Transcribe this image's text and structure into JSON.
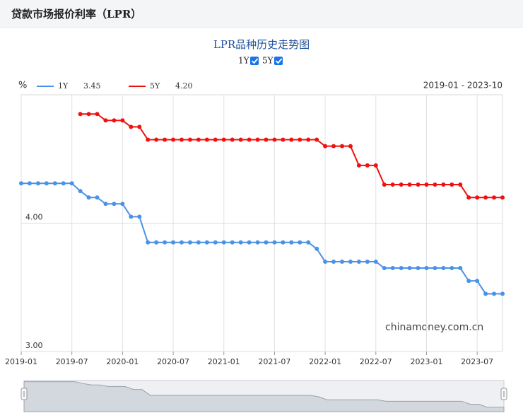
{
  "header": {
    "title": "贷款市场报价利率（LPR）"
  },
  "chart_data": {
    "type": "line",
    "title": "LPR品种历史走势图",
    "y_label": "%",
    "range": "2019-01 - 2023-10",
    "watermark": "chinamoney.com.cn",
    "categories": [
      "2019-01",
      null,
      null,
      null,
      null,
      null,
      "2019-07",
      null,
      null,
      null,
      null,
      null,
      "2020-01",
      null,
      null,
      null,
      null,
      null,
      "2020-07",
      null,
      null,
      null,
      null,
      null,
      "2021-01",
      null,
      null,
      null,
      null,
      null,
      "2021-07",
      null,
      null,
      null,
      null,
      null,
      "2022-01",
      null,
      null,
      null,
      null,
      null,
      "2022-07",
      null,
      null,
      null,
      null,
      null,
      "2023-01",
      null,
      null,
      null,
      null,
      null,
      "2023-07",
      null,
      null,
      null
    ],
    "series": [
      {
        "name": "1Y",
        "latest": "3.45",
        "color": "#4a92e6",
        "values": [
          4.31,
          4.31,
          4.31,
          4.31,
          4.31,
          4.31,
          4.31,
          4.25,
          4.2,
          4.2,
          4.15,
          4.15,
          4.15,
          4.05,
          4.05,
          3.85,
          3.85,
          3.85,
          3.85,
          3.85,
          3.85,
          3.85,
          3.85,
          3.85,
          3.85,
          3.85,
          3.85,
          3.85,
          3.85,
          3.85,
          3.85,
          3.85,
          3.85,
          3.85,
          3.85,
          3.8,
          3.7,
          3.7,
          3.7,
          3.7,
          3.7,
          3.7,
          3.7,
          3.65,
          3.65,
          3.65,
          3.65,
          3.65,
          3.65,
          3.65,
          3.65,
          3.65,
          3.65,
          3.55,
          3.55,
          3.45,
          3.45,
          3.45
        ]
      },
      {
        "name": "5Y",
        "latest": "4.20",
        "color": "#f01010",
        "values": [
          null,
          null,
          null,
          null,
          null,
          null,
          null,
          4.85,
          4.85,
          4.85,
          4.8,
          4.8,
          4.8,
          4.75,
          4.75,
          4.65,
          4.65,
          4.65,
          4.65,
          4.65,
          4.65,
          4.65,
          4.65,
          4.65,
          4.65,
          4.65,
          4.65,
          4.65,
          4.65,
          4.65,
          4.65,
          4.65,
          4.65,
          4.65,
          4.65,
          4.65,
          4.6,
          4.6,
          4.6,
          4.6,
          4.45,
          4.45,
          4.45,
          4.3,
          4.3,
          4.3,
          4.3,
          4.3,
          4.3,
          4.3,
          4.3,
          4.3,
          4.3,
          4.2,
          4.2,
          4.2,
          4.2,
          4.2
        ]
      }
    ],
    "ylim": [
      3,
      5
    ],
    "yticks": [
      {
        "value": 3,
        "label": "3.00"
      },
      {
        "value": 4,
        "label": "4.00"
      }
    ],
    "grid": true
  }
}
